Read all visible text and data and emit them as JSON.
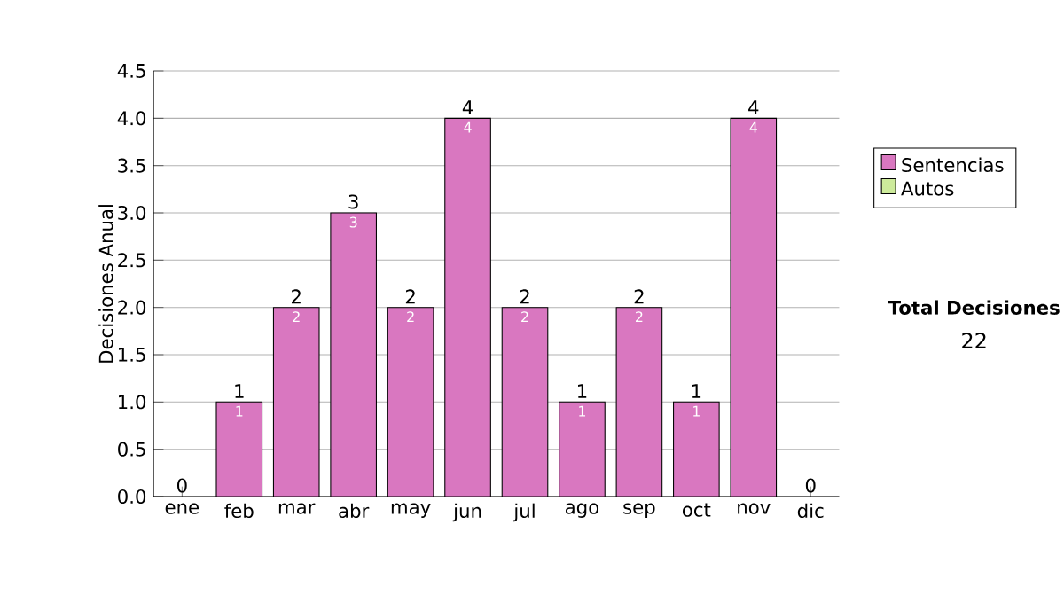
{
  "chart_data": {
    "type": "bar",
    "stacked": true,
    "ylabel": "Decisiones Anual",
    "categories": [
      "ene",
      "feb",
      "mar",
      "abr",
      "may",
      "jun",
      "jul",
      "ago",
      "sep",
      "oct",
      "nov",
      "dic"
    ],
    "series": [
      {
        "name": "Sentencias",
        "color": "#d977c0",
        "values": [
          0,
          1,
          2,
          3,
          2,
          4,
          2,
          1,
          2,
          1,
          4,
          0
        ],
        "value_labels": [
          null,
          "1",
          "2",
          "3",
          "2",
          "4",
          "2",
          "1",
          "2",
          "1",
          "4",
          null
        ]
      },
      {
        "name": "Autos",
        "color": "#cdeb9b",
        "values": [
          0,
          0,
          0,
          0,
          0,
          0,
          0,
          0,
          0,
          0,
          0,
          0
        ]
      }
    ],
    "totals": [
      "0",
      "1",
      "2",
      "3",
      "2",
      "4",
      "2",
      "1",
      "2",
      "1",
      "4",
      "0"
    ],
    "ylim": [
      0,
      4.5
    ],
    "yticks": [
      {
        "value": 0,
        "label": "0.0"
      },
      {
        "value": 0.5,
        "label": "0.5"
      },
      {
        "value": 1,
        "label": "1.0"
      },
      {
        "value": 1.5,
        "label": "1.5"
      },
      {
        "value": 2,
        "label": "2.0"
      },
      {
        "value": 2.5,
        "label": "2.5"
      },
      {
        "value": 3,
        "label": "3.0"
      },
      {
        "value": 3.5,
        "label": "3.5"
      },
      {
        "value": 4,
        "label": "4.0"
      },
      {
        "value": 4.5,
        "label": "4.5"
      }
    ],
    "grid": "y",
    "legend": "right",
    "annotations": [
      "Total Decisiones",
      "22"
    ]
  }
}
